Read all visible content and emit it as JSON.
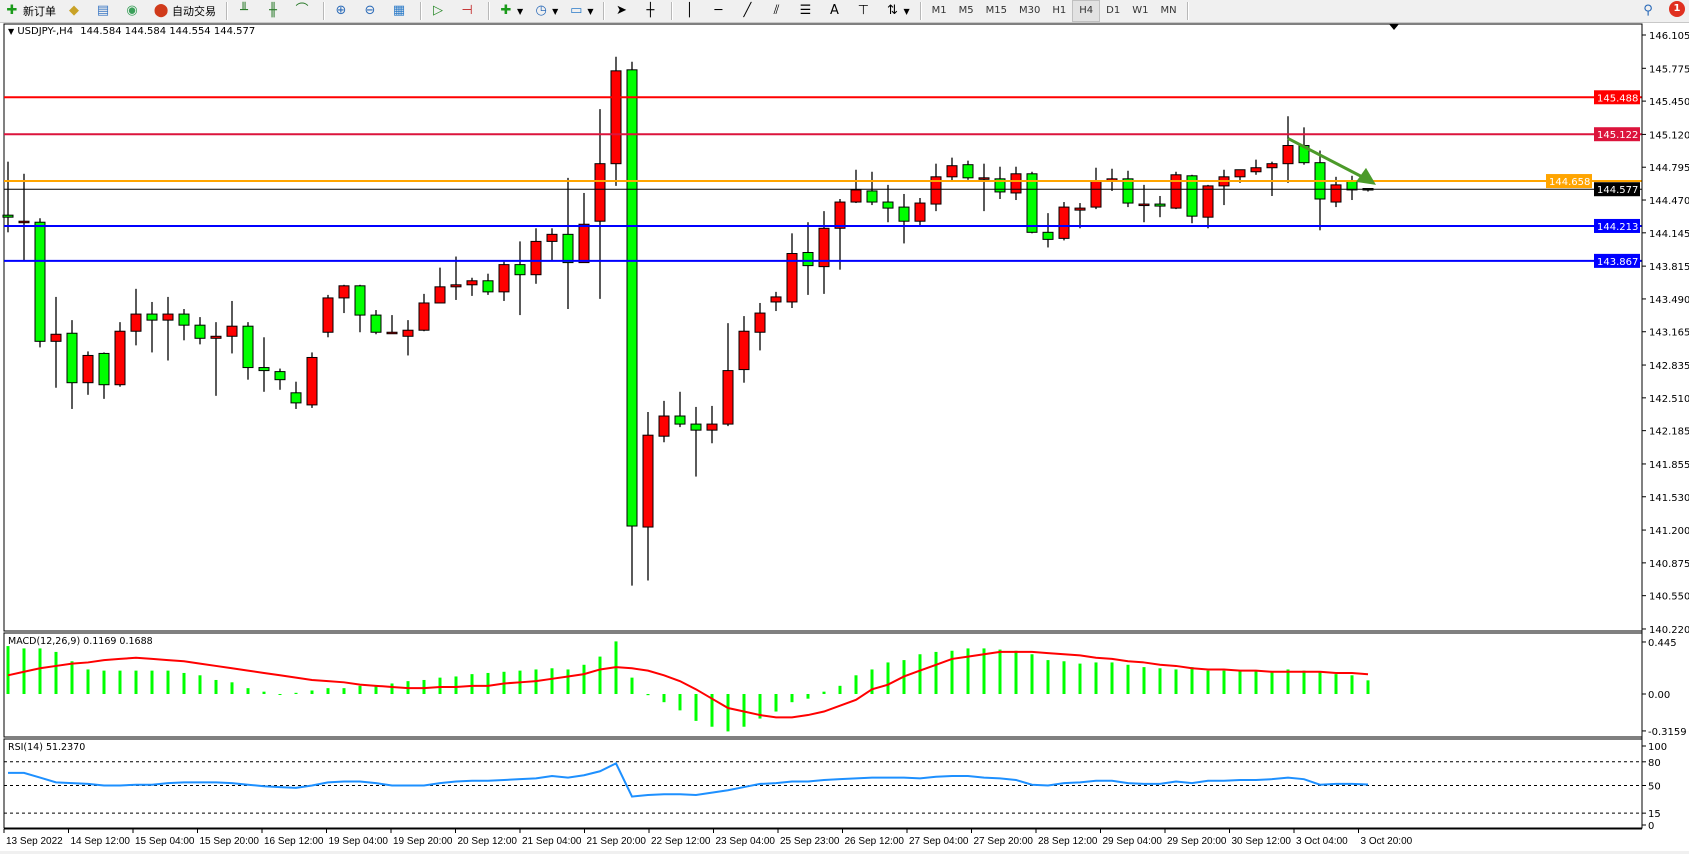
{
  "toolbar": {
    "new_order": "新订单",
    "auto_trading": "自动交易",
    "timeframes": [
      "M1",
      "M5",
      "M15",
      "M30",
      "H1",
      "H4",
      "D1",
      "W1",
      "MN"
    ],
    "active_timeframe": "H4",
    "notification_count": "1",
    "text_tool": "A"
  },
  "chart_header": {
    "symbol": "USDJPY-,H4",
    "ohlc": "144.584 144.584 144.554 144.577"
  },
  "colors": {
    "bull_candle": "#ff0000",
    "bear_candle": "#00ff00",
    "macd_histogram": "#00ff00",
    "macd_signal": "#ff0000",
    "rsi_line": "#1e90ff",
    "arrow": "#4c9a2a"
  },
  "chart_data": [
    {
      "type": "candlestick",
      "title": "USDJPY-,H4",
      "ylim": [
        140.22,
        146.105
      ],
      "y_ticks": [
        "146.105",
        "145.775",
        "145.450",
        "145.120",
        "144.795",
        "144.470",
        "144.145",
        "143.815",
        "143.490",
        "143.165",
        "142.835",
        "142.510",
        "142.185",
        "141.855",
        "141.530",
        "141.200",
        "140.875",
        "140.550",
        "140.220"
      ],
      "x_tick_labels": [
        "13 Sep 2022",
        "14 Sep 12:00",
        "15 Sep 04:00",
        "15 Sep 20:00",
        "16 Sep 12:00",
        "19 Sep 04:00",
        "19 Sep 20:00",
        "20 Sep 12:00",
        "21 Sep 04:00",
        "21 Sep 20:00",
        "22 Sep 12:00",
        "23 Sep 04:00",
        "25 Sep 23:00",
        "26 Sep 12:00",
        "27 Sep 04:00",
        "27 Sep 20:00",
        "28 Sep 12:00",
        "29 Sep 04:00",
        "29 Sep 20:00",
        "30 Sep 12:00",
        "3 Oct 04:00",
        "3 Oct 20:00"
      ],
      "ohlc": [
        [
          144.32,
          144.85,
          144.15,
          144.3
        ],
        [
          144.26,
          144.73,
          143.87,
          144.26
        ],
        [
          144.25,
          144.29,
          143.01,
          143.07
        ],
        [
          143.07,
          143.51,
          142.61,
          143.14
        ],
        [
          143.15,
          143.28,
          142.4,
          142.66
        ],
        [
          142.66,
          142.97,
          142.54,
          142.93
        ],
        [
          142.95,
          142.96,
          142.5,
          142.64
        ],
        [
          142.64,
          143.26,
          142.62,
          143.17
        ],
        [
          143.17,
          143.59,
          143.03,
          143.34
        ],
        [
          143.34,
          143.46,
          142.96,
          143.28
        ],
        [
          143.28,
          143.51,
          142.88,
          143.34
        ],
        [
          143.34,
          143.39,
          143.08,
          143.23
        ],
        [
          143.23,
          143.31,
          143.04,
          143.1
        ],
        [
          143.1,
          143.26,
          142.53,
          143.12
        ],
        [
          143.12,
          143.47,
          142.95,
          143.22
        ],
        [
          143.22,
          143.26,
          142.69,
          142.81
        ],
        [
          142.81,
          143.11,
          142.57,
          142.78
        ],
        [
          142.77,
          142.8,
          142.59,
          142.69
        ],
        [
          142.56,
          142.67,
          142.4,
          142.46
        ],
        [
          142.44,
          142.96,
          142.41,
          142.91
        ],
        [
          143.16,
          143.53,
          143.11,
          143.5
        ],
        [
          143.5,
          143.63,
          143.35,
          143.62
        ],
        [
          143.62,
          143.63,
          143.16,
          143.33
        ],
        [
          143.33,
          143.38,
          143.14,
          143.16
        ],
        [
          143.16,
          143.33,
          143.15,
          143.16
        ],
        [
          143.12,
          143.28,
          142.93,
          143.18
        ],
        [
          143.18,
          143.54,
          143.17,
          143.45
        ],
        [
          143.45,
          143.8,
          143.45,
          143.61
        ],
        [
          143.61,
          143.91,
          143.48,
          143.63
        ],
        [
          143.63,
          143.7,
          143.52,
          143.67
        ],
        [
          143.67,
          143.74,
          143.53,
          143.56
        ],
        [
          143.56,
          143.86,
          143.47,
          143.83
        ],
        [
          143.83,
          144.06,
          143.33,
          143.73
        ],
        [
          143.73,
          144.19,
          143.64,
          144.06
        ],
        [
          144.06,
          144.19,
          143.87,
          144.13
        ],
        [
          144.13,
          144.69,
          143.39,
          143.85
        ],
        [
          143.85,
          144.54,
          143.85,
          144.23
        ],
        [
          144.26,
          145.37,
          143.49,
          144.83
        ],
        [
          144.83,
          145.89,
          144.61,
          145.75
        ],
        [
          145.76,
          145.84,
          140.65,
          141.24
        ],
        [
          141.23,
          142.37,
          140.7,
          142.14
        ],
        [
          142.13,
          142.48,
          142.07,
          142.33
        ],
        [
          142.33,
          142.57,
          142.22,
          142.25
        ],
        [
          142.25,
          142.42,
          141.73,
          142.19
        ],
        [
          142.19,
          142.43,
          142.06,
          142.25
        ],
        [
          142.25,
          143.25,
          142.23,
          142.78
        ],
        [
          142.79,
          143.32,
          142.66,
          143.17
        ],
        [
          143.16,
          143.45,
          142.98,
          143.35
        ],
        [
          143.46,
          143.56,
          143.37,
          143.51
        ],
        [
          143.46,
          144.14,
          143.4,
          143.94
        ],
        [
          143.95,
          144.25,
          143.53,
          143.82
        ],
        [
          143.81,
          144.36,
          143.54,
          144.19
        ],
        [
          144.19,
          144.48,
          143.78,
          144.45
        ],
        [
          144.45,
          144.77,
          144.44,
          144.57
        ],
        [
          144.56,
          144.75,
          144.42,
          144.45
        ],
        [
          144.45,
          144.62,
          144.25,
          144.39
        ],
        [
          144.4,
          144.53,
          144.04,
          144.26
        ],
        [
          144.26,
          144.49,
          144.22,
          144.44
        ],
        [
          144.43,
          144.83,
          144.36,
          144.7
        ],
        [
          144.7,
          144.89,
          144.66,
          144.81
        ],
        [
          144.82,
          144.86,
          144.67,
          144.69
        ],
        [
          144.69,
          144.83,
          144.36,
          144.69
        ],
        [
          144.68,
          144.8,
          144.48,
          144.55
        ],
        [
          144.54,
          144.8,
          144.47,
          144.73
        ],
        [
          144.73,
          144.75,
          144.14,
          144.15
        ],
        [
          144.15,
          144.34,
          144.0,
          144.08
        ],
        [
          144.09,
          144.45,
          144.07,
          144.4
        ],
        [
          144.37,
          144.44,
          144.19,
          144.39
        ],
        [
          144.4,
          144.79,
          144.38,
          144.66
        ],
        [
          144.66,
          144.78,
          144.56,
          144.68
        ],
        [
          144.68,
          144.76,
          144.4,
          144.44
        ],
        [
          144.43,
          144.62,
          144.25,
          144.43
        ],
        [
          144.43,
          144.51,
          144.3,
          144.41
        ],
        [
          144.39,
          144.75,
          144.38,
          144.72
        ],
        [
          144.71,
          144.72,
          144.24,
          144.31
        ],
        [
          144.3,
          144.62,
          144.19,
          144.61
        ],
        [
          144.61,
          144.77,
          144.42,
          144.7
        ],
        [
          144.7,
          144.77,
          144.64,
          144.77
        ],
        [
          144.75,
          144.87,
          144.72,
          144.79
        ],
        [
          144.79,
          144.85,
          144.51,
          144.83
        ],
        [
          144.83,
          145.3,
          144.64,
          145.01
        ],
        [
          145.01,
          145.19,
          144.82,
          144.84
        ],
        [
          144.84,
          144.96,
          144.17,
          144.48
        ],
        [
          144.45,
          144.7,
          144.4,
          144.62
        ],
        [
          144.66,
          144.71,
          144.47,
          144.57
        ],
        [
          144.584,
          144.584,
          144.554,
          144.577
        ]
      ],
      "horizontal_lines": [
        {
          "price": "145.488",
          "color": "#ff0000"
        },
        {
          "price": "145.122",
          "color": "#dc143c"
        },
        {
          "price": "144.658",
          "color": "#ffa500"
        },
        {
          "price": "144.577",
          "color": "#000000"
        },
        {
          "price": "144.213",
          "color": "#0000ff"
        },
        {
          "price": "143.867",
          "color": "#0000ff"
        }
      ],
      "annotation_arrow": {
        "from": [
          80,
          145.08
        ],
        "to": [
          85.5,
          144.62
        ],
        "direction": "down-right"
      }
    },
    {
      "type": "bar+line",
      "title": "MACD(12,26,9) 0.1169 0.1688",
      "ylim": [
        -0.3159,
        0.445
      ],
      "y_ticks": [
        "0.445",
        "0.00",
        "-0.3159"
      ],
      "histogram": [
        0.41,
        0.39,
        0.39,
        0.36,
        0.28,
        0.21,
        0.2,
        0.2,
        0.2,
        0.2,
        0.2,
        0.18,
        0.16,
        0.12,
        0.1,
        0.05,
        0.02,
        0.0,
        0.01,
        0.03,
        0.05,
        0.05,
        0.07,
        0.07,
        0.09,
        0.11,
        0.12,
        0.14,
        0.15,
        0.17,
        0.18,
        0.19,
        0.2,
        0.21,
        0.22,
        0.21,
        0.25,
        0.32,
        0.45,
        0.14,
        -0.01,
        -0.07,
        -0.14,
        -0.23,
        -0.28,
        -0.32,
        -0.28,
        -0.21,
        -0.15,
        -0.07,
        -0.04,
        0.02,
        0.07,
        0.16,
        0.21,
        0.27,
        0.29,
        0.34,
        0.36,
        0.37,
        0.39,
        0.39,
        0.38,
        0.37,
        0.34,
        0.29,
        0.28,
        0.26,
        0.27,
        0.27,
        0.25,
        0.23,
        0.22,
        0.21,
        0.23,
        0.2,
        0.2,
        0.2,
        0.2,
        0.19,
        0.21,
        0.2,
        0.19,
        0.17,
        0.16,
        0.1169
      ],
      "signal": [
        0.16,
        0.19,
        0.22,
        0.24,
        0.26,
        0.27,
        0.29,
        0.3,
        0.31,
        0.3,
        0.29,
        0.28,
        0.26,
        0.24,
        0.22,
        0.2,
        0.18,
        0.16,
        0.14,
        0.12,
        0.11,
        0.1,
        0.08,
        0.07,
        0.06,
        0.05,
        0.05,
        0.06,
        0.06,
        0.07,
        0.07,
        0.09,
        0.1,
        0.11,
        0.13,
        0.15,
        0.17,
        0.21,
        0.23,
        0.22,
        0.2,
        0.16,
        0.11,
        0.04,
        -0.04,
        -0.12,
        -0.15,
        -0.18,
        -0.2,
        -0.2,
        -0.18,
        -0.15,
        -0.1,
        -0.05,
        0.04,
        0.08,
        0.15,
        0.2,
        0.25,
        0.3,
        0.32,
        0.34,
        0.36,
        0.36,
        0.36,
        0.35,
        0.34,
        0.33,
        0.31,
        0.3,
        0.28,
        0.27,
        0.25,
        0.24,
        0.22,
        0.21,
        0.21,
        0.2,
        0.2,
        0.19,
        0.19,
        0.19,
        0.19,
        0.18,
        0.18,
        0.1688
      ]
    },
    {
      "type": "line",
      "title": "RSI(14) 51.2370",
      "ylim": [
        0,
        100
      ],
      "y_ticks": [
        "100",
        "80",
        "50",
        "15",
        "0"
      ],
      "levels": [
        80,
        50,
        15
      ],
      "values": [
        66,
        66,
        60,
        54,
        53,
        52,
        50,
        50,
        51,
        51,
        53,
        54,
        54,
        54,
        53,
        51,
        49,
        48,
        47,
        50,
        54,
        55,
        55,
        53,
        50,
        50,
        50,
        53,
        55,
        56,
        56,
        57,
        58,
        59,
        62,
        60,
        63,
        68,
        78,
        36,
        38,
        39,
        39,
        38,
        41,
        44,
        48,
        52,
        53,
        55,
        55,
        57,
        58,
        59,
        60,
        60,
        60,
        59,
        61,
        62,
        62,
        60,
        59,
        57,
        51,
        50,
        53,
        54,
        56,
        56,
        53,
        52,
        52,
        55,
        53,
        56,
        56,
        57,
        57,
        58,
        60,
        58,
        51,
        52,
        52,
        51.237
      ]
    }
  ]
}
